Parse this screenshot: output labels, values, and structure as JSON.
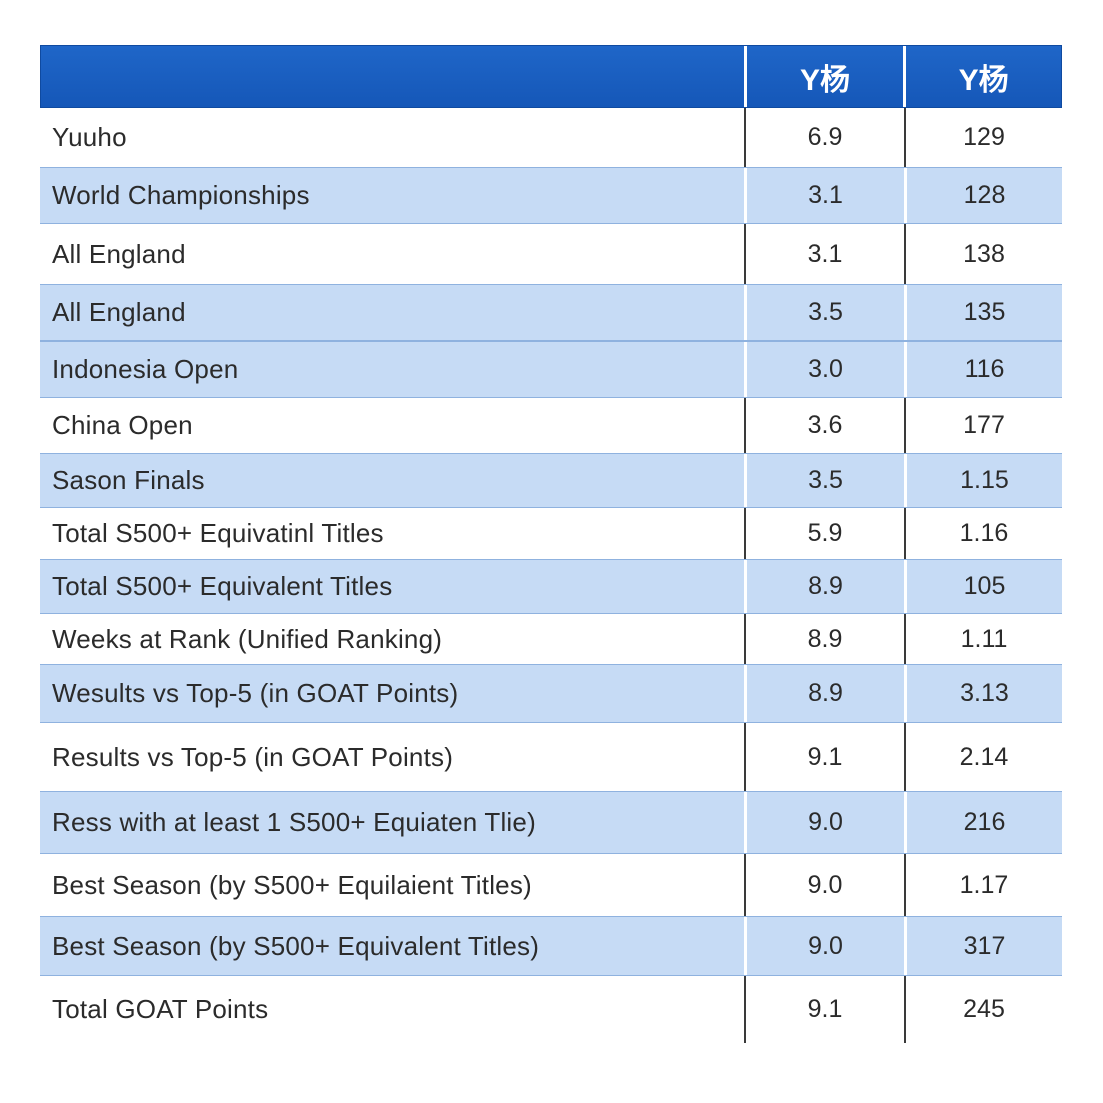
{
  "chart_data": {
    "type": "table",
    "columns": [
      "",
      "Y杨",
      "Y杨"
    ],
    "rows": [
      {
        "label": "Yuuho",
        "a": "6.9",
        "b": "129",
        "shaded": false,
        "h": 59
      },
      {
        "label": "World Championships",
        "a": "3.1",
        "b": "128",
        "shaded": true,
        "h": 57
      },
      {
        "label": "All England",
        "a": "3.1",
        "b": "138",
        "shaded": false,
        "h": 60
      },
      {
        "label": "All England",
        "a": "3.5",
        "b": "135",
        "shaded": true,
        "h": 57
      },
      {
        "label": "Indonesia Open",
        "a": "3.0",
        "b": "116",
        "shaded": true,
        "h": 57
      },
      {
        "label": "China Open",
        "a": "3.6",
        "b": "177",
        "shaded": false,
        "h": 55
      },
      {
        "label": "Sason Finals",
        "a": "3.5",
        "b": "1.15",
        "shaded": true,
        "h": 55
      },
      {
        "label": "Total S500+ Equivatinl Titles",
        "a": "5.9",
        "b": "1.16",
        "shaded": false,
        "h": 51
      },
      {
        "label": "Total S500+ Equivalent Titles",
        "a": "8.9",
        "b": "105",
        "shaded": true,
        "h": 55
      },
      {
        "label": "Weeks at Rank (Unified Ranking)",
        "a": "8.9",
        "b": "1.11",
        "shaded": false,
        "h": 50
      },
      {
        "label": "Wesults vs Top-5 (in GOAT Points)",
        "a": "8.9",
        "b": "3.13",
        "shaded": true,
        "h": 59
      },
      {
        "label": "Results vs Top-5 (in GOAT Points)",
        "a": "9.1",
        "b": "2.14",
        "shaded": false,
        "h": 68
      },
      {
        "label": "Ress with at least 1 S500+ Equiaten Tlie)",
        "a": "9.0",
        "b": "216",
        "shaded": true,
        "h": 63
      },
      {
        "label": "Best Season (by S500+ Equilaient Titles)",
        "a": "9.0",
        "b": "1.17",
        "shaded": false,
        "h": 62
      },
      {
        "label": "Best Season (by S500+ Equivalent Titles)",
        "a": "9.0",
        "b": "317",
        "shaded": true,
        "h": 60
      },
      {
        "label": "Total GOAT Points",
        "a": "9.1",
        "b": "245",
        "shaded": false,
        "h": 67
      }
    ]
  }
}
